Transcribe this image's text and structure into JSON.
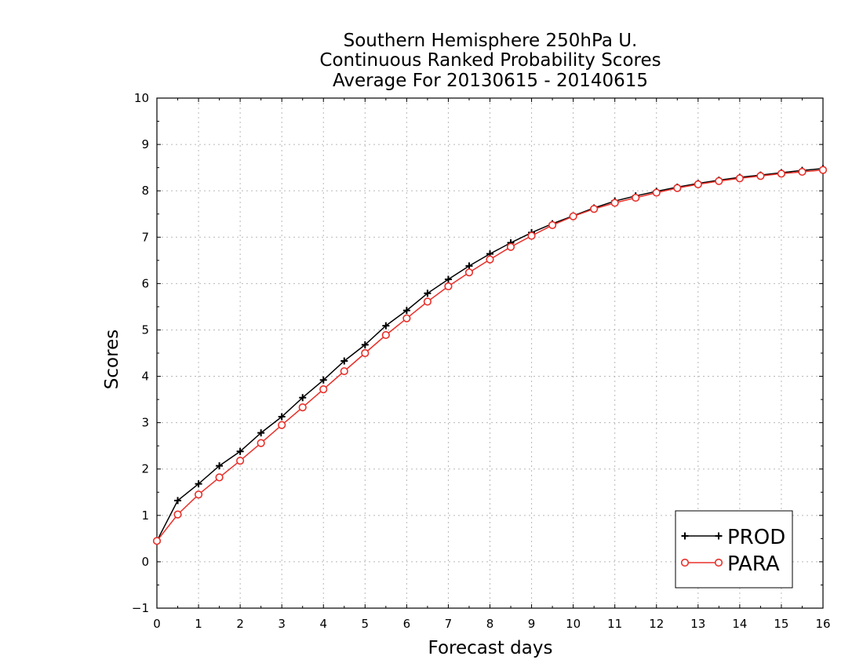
{
  "chart_data": {
    "type": "line",
    "title": [
      "Southern Hemisphere 250hPa U.",
      "Continuous Ranked Probability Scores",
      "Average For 20130615 - 20140615"
    ],
    "xlabel": "Forecast days",
    "ylabel": "Scores",
    "xlim": [
      0,
      16
    ],
    "ylim": [
      -1,
      10
    ],
    "xticks": [
      0,
      1,
      2,
      3,
      4,
      5,
      6,
      7,
      8,
      9,
      10,
      11,
      12,
      13,
      14,
      15,
      16
    ],
    "yticks": [
      -1,
      0,
      1,
      2,
      3,
      4,
      5,
      6,
      7,
      8,
      9,
      10
    ],
    "grid": true,
    "legend_position": "bottom-right",
    "x": [
      0,
      0.5,
      1,
      1.5,
      2,
      2.5,
      3,
      3.5,
      4,
      4.5,
      5,
      5.5,
      6,
      6.5,
      7,
      7.5,
      8,
      8.5,
      9,
      9.5,
      10,
      10.5,
      11,
      11.5,
      12,
      12.5,
      13,
      13.5,
      14,
      14.5,
      15,
      15.5,
      16
    ],
    "series": [
      {
        "name": "PROD",
        "color": "#000000",
        "marker": "plus",
        "values": [
          0.45,
          1.32,
          1.68,
          2.07,
          2.38,
          2.78,
          3.13,
          3.54,
          3.92,
          4.33,
          4.68,
          5.09,
          5.42,
          5.79,
          6.09,
          6.38,
          6.64,
          6.88,
          7.1,
          7.29,
          7.46,
          7.63,
          7.78,
          7.89,
          7.99,
          8.08,
          8.16,
          8.23,
          8.29,
          8.34,
          8.39,
          8.44,
          8.48
        ]
      },
      {
        "name": "PARA",
        "color": "#e8302a",
        "marker": "circle",
        "values": [
          0.45,
          1.02,
          1.45,
          1.82,
          2.18,
          2.56,
          2.95,
          3.33,
          3.72,
          4.11,
          4.5,
          4.89,
          5.25,
          5.61,
          5.94,
          6.24,
          6.52,
          6.79,
          7.03,
          7.26,
          7.45,
          7.61,
          7.74,
          7.85,
          7.96,
          8.06,
          8.14,
          8.21,
          8.27,
          8.32,
          8.37,
          8.41,
          8.45
        ]
      }
    ]
  }
}
